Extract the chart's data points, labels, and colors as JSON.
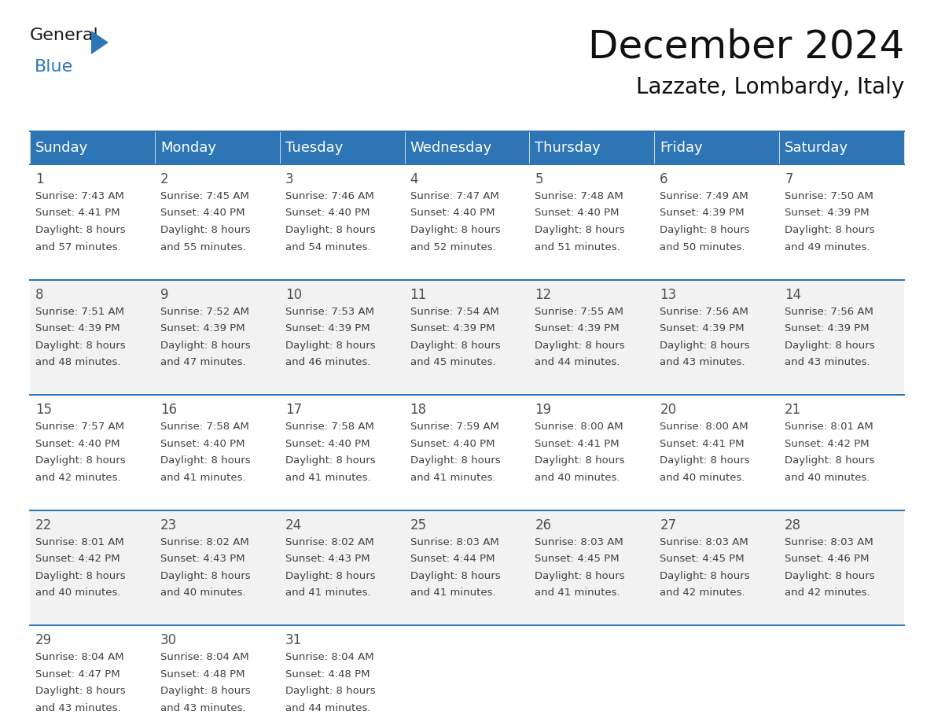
{
  "title": "December 2024",
  "subtitle": "Lazzate, Lombardy, Italy",
  "header_bg_color": "#2E75B6",
  "header_text_color": "#FFFFFF",
  "row_bg_colors": [
    "#FFFFFF",
    "#F2F2F2"
  ],
  "grid_line_color": "#2E75B6",
  "day_names": [
    "Sunday",
    "Monday",
    "Tuesday",
    "Wednesday",
    "Thursday",
    "Friday",
    "Saturday"
  ],
  "days": [
    {
      "day": 1,
      "col": 0,
      "row": 0,
      "sunrise": "7:43 AM",
      "sunset": "4:41 PM",
      "daylight": "8 hours and 57 minutes."
    },
    {
      "day": 2,
      "col": 1,
      "row": 0,
      "sunrise": "7:45 AM",
      "sunset": "4:40 PM",
      "daylight": "8 hours and 55 minutes."
    },
    {
      "day": 3,
      "col": 2,
      "row": 0,
      "sunrise": "7:46 AM",
      "sunset": "4:40 PM",
      "daylight": "8 hours and 54 minutes."
    },
    {
      "day": 4,
      "col": 3,
      "row": 0,
      "sunrise": "7:47 AM",
      "sunset": "4:40 PM",
      "daylight": "8 hours and 52 minutes."
    },
    {
      "day": 5,
      "col": 4,
      "row": 0,
      "sunrise": "7:48 AM",
      "sunset": "4:40 PM",
      "daylight": "8 hours and 51 minutes."
    },
    {
      "day": 6,
      "col": 5,
      "row": 0,
      "sunrise": "7:49 AM",
      "sunset": "4:39 PM",
      "daylight": "8 hours and 50 minutes."
    },
    {
      "day": 7,
      "col": 6,
      "row": 0,
      "sunrise": "7:50 AM",
      "sunset": "4:39 PM",
      "daylight": "8 hours and 49 minutes."
    },
    {
      "day": 8,
      "col": 0,
      "row": 1,
      "sunrise": "7:51 AM",
      "sunset": "4:39 PM",
      "daylight": "8 hours and 48 minutes."
    },
    {
      "day": 9,
      "col": 1,
      "row": 1,
      "sunrise": "7:52 AM",
      "sunset": "4:39 PM",
      "daylight": "8 hours and 47 minutes."
    },
    {
      "day": 10,
      "col": 2,
      "row": 1,
      "sunrise": "7:53 AM",
      "sunset": "4:39 PM",
      "daylight": "8 hours and 46 minutes."
    },
    {
      "day": 11,
      "col": 3,
      "row": 1,
      "sunrise": "7:54 AM",
      "sunset": "4:39 PM",
      "daylight": "8 hours and 45 minutes."
    },
    {
      "day": 12,
      "col": 4,
      "row": 1,
      "sunrise": "7:55 AM",
      "sunset": "4:39 PM",
      "daylight": "8 hours and 44 minutes."
    },
    {
      "day": 13,
      "col": 5,
      "row": 1,
      "sunrise": "7:56 AM",
      "sunset": "4:39 PM",
      "daylight": "8 hours and 43 minutes."
    },
    {
      "day": 14,
      "col": 6,
      "row": 1,
      "sunrise": "7:56 AM",
      "sunset": "4:39 PM",
      "daylight": "8 hours and 43 minutes."
    },
    {
      "day": 15,
      "col": 0,
      "row": 2,
      "sunrise": "7:57 AM",
      "sunset": "4:40 PM",
      "daylight": "8 hours and 42 minutes."
    },
    {
      "day": 16,
      "col": 1,
      "row": 2,
      "sunrise": "7:58 AM",
      "sunset": "4:40 PM",
      "daylight": "8 hours and 41 minutes."
    },
    {
      "day": 17,
      "col": 2,
      "row": 2,
      "sunrise": "7:58 AM",
      "sunset": "4:40 PM",
      "daylight": "8 hours and 41 minutes."
    },
    {
      "day": 18,
      "col": 3,
      "row": 2,
      "sunrise": "7:59 AM",
      "sunset": "4:40 PM",
      "daylight": "8 hours and 41 minutes."
    },
    {
      "day": 19,
      "col": 4,
      "row": 2,
      "sunrise": "8:00 AM",
      "sunset": "4:41 PM",
      "daylight": "8 hours and 40 minutes."
    },
    {
      "day": 20,
      "col": 5,
      "row": 2,
      "sunrise": "8:00 AM",
      "sunset": "4:41 PM",
      "daylight": "8 hours and 40 minutes."
    },
    {
      "day": 21,
      "col": 6,
      "row": 2,
      "sunrise": "8:01 AM",
      "sunset": "4:42 PM",
      "daylight": "8 hours and 40 minutes."
    },
    {
      "day": 22,
      "col": 0,
      "row": 3,
      "sunrise": "8:01 AM",
      "sunset": "4:42 PM",
      "daylight": "8 hours and 40 minutes."
    },
    {
      "day": 23,
      "col": 1,
      "row": 3,
      "sunrise": "8:02 AM",
      "sunset": "4:43 PM",
      "daylight": "8 hours and 40 minutes."
    },
    {
      "day": 24,
      "col": 2,
      "row": 3,
      "sunrise": "8:02 AM",
      "sunset": "4:43 PM",
      "daylight": "8 hours and 41 minutes."
    },
    {
      "day": 25,
      "col": 3,
      "row": 3,
      "sunrise": "8:03 AM",
      "sunset": "4:44 PM",
      "daylight": "8 hours and 41 minutes."
    },
    {
      "day": 26,
      "col": 4,
      "row": 3,
      "sunrise": "8:03 AM",
      "sunset": "4:45 PM",
      "daylight": "8 hours and 41 minutes."
    },
    {
      "day": 27,
      "col": 5,
      "row": 3,
      "sunrise": "8:03 AM",
      "sunset": "4:45 PM",
      "daylight": "8 hours and 42 minutes."
    },
    {
      "day": 28,
      "col": 6,
      "row": 3,
      "sunrise": "8:03 AM",
      "sunset": "4:46 PM",
      "daylight": "8 hours and 42 minutes."
    },
    {
      "day": 29,
      "col": 0,
      "row": 4,
      "sunrise": "8:04 AM",
      "sunset": "4:47 PM",
      "daylight": "8 hours and 43 minutes."
    },
    {
      "day": 30,
      "col": 1,
      "row": 4,
      "sunrise": "8:04 AM",
      "sunset": "4:48 PM",
      "daylight": "8 hours and 43 minutes."
    },
    {
      "day": 31,
      "col": 2,
      "row": 4,
      "sunrise": "8:04 AM",
      "sunset": "4:48 PM",
      "daylight": "8 hours and 44 minutes."
    }
  ],
  "num_rows": 5,
  "num_cols": 7,
  "text_color": "#404040",
  "day_number_color": "#505050",
  "logo_general_color": "#1a1a1a",
  "logo_blue_color": "#2E75B6",
  "title_fontsize": 36,
  "subtitle_fontsize": 20,
  "header_fontsize": 13,
  "day_num_fontsize": 12,
  "cell_text_fontsize": 9.5,
  "fig_width": 11.88,
  "fig_height": 9.18,
  "dpi": 100
}
